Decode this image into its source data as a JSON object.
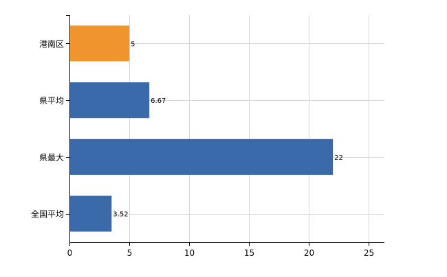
{
  "chart_data": {
    "type": "bar",
    "orientation": "horizontal",
    "title": "",
    "xlabel": "",
    "ylabel": "",
    "categories": [
      "港南区",
      "県平均",
      "県最大",
      "全国平均"
    ],
    "values": [
      5,
      6.67,
      22,
      3.52
    ],
    "value_labels": [
      "5",
      "6.67",
      "22",
      "3.52"
    ],
    "bar_colors": [
      "#f0952e",
      "#3b6aaa",
      "#3b6aaa",
      "#3b6aaa"
    ],
    "xlim": [
      0,
      26.3
    ],
    "xticks": [
      0,
      5,
      10,
      15,
      20,
      25
    ],
    "xtick_labels": [
      "0",
      "5",
      "10",
      "15",
      "20",
      "25"
    ],
    "grid": true,
    "legend": "none"
  }
}
